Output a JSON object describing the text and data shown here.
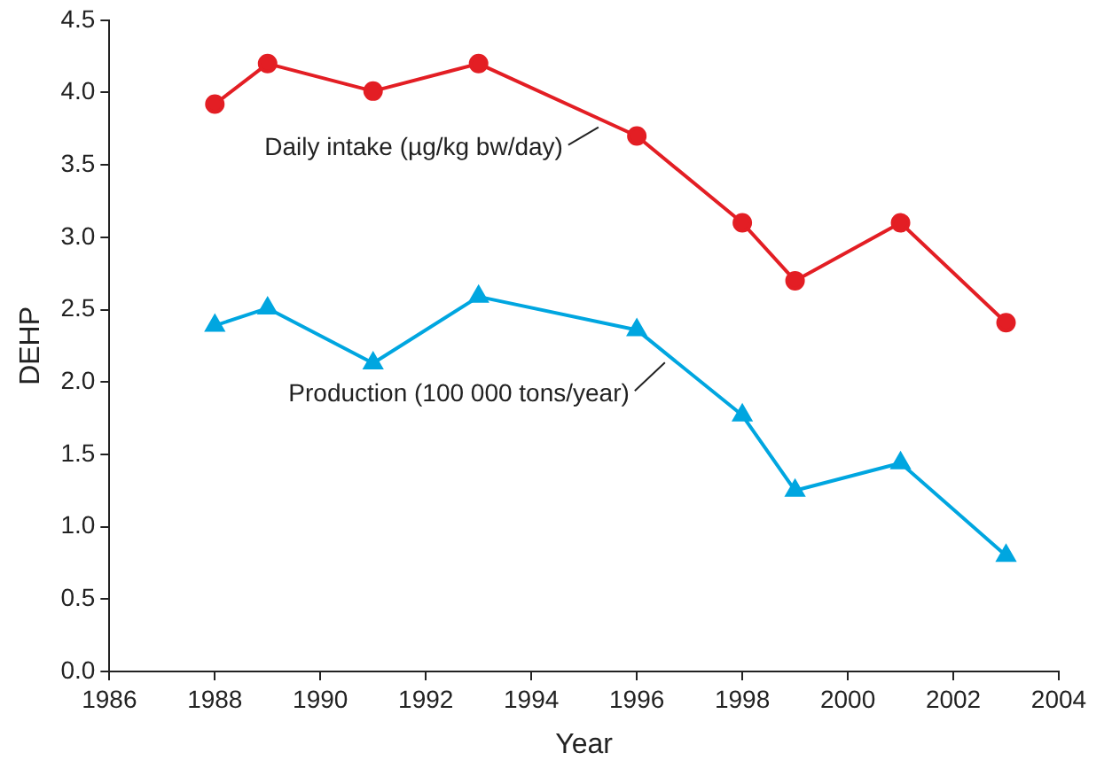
{
  "chart_data": {
    "type": "line",
    "xlabel": "Year",
    "ylabel": "DEHP",
    "xlim": [
      1986,
      2004
    ],
    "xticks": [
      1986,
      1988,
      1990,
      1992,
      1994,
      1996,
      1998,
      2000,
      2002,
      2004
    ],
    "ylim": [
      0,
      4.5
    ],
    "yticks": [
      {
        "value": 0,
        "label": "0.0"
      },
      0.5,
      {
        "value": 1,
        "label": "1.0"
      },
      1.5,
      {
        "value": 2,
        "label": "2.0"
      },
      2.5,
      {
        "value": 3,
        "label": "3.0"
      },
      3.5,
      {
        "value": 4,
        "label": "4.0"
      },
      4.5
    ],
    "grid": false,
    "legend": false,
    "series": [
      {
        "name": "Daily intake (µg/kg bw/day)",
        "color": "#e31e24",
        "marker": "circle",
        "x": [
          1988,
          1989,
          1991,
          1993,
          1996,
          1998,
          1999,
          2001,
          2003
        ],
        "values": [
          3.92,
          4.2,
          4.01,
          4.2,
          3.7,
          3.1,
          2.7,
          3.1,
          2.41
        ]
      },
      {
        "name": "Production (100 000 tons/year)",
        "color": "#00a6e0",
        "marker": "triangle",
        "x": [
          1988,
          1989,
          1991,
          1993,
          1996,
          1998,
          1999,
          2001,
          2003
        ],
        "values": [
          2.39,
          2.51,
          2.13,
          2.59,
          2.36,
          1.77,
          1.25,
          1.44,
          0.8
        ]
      }
    ]
  }
}
